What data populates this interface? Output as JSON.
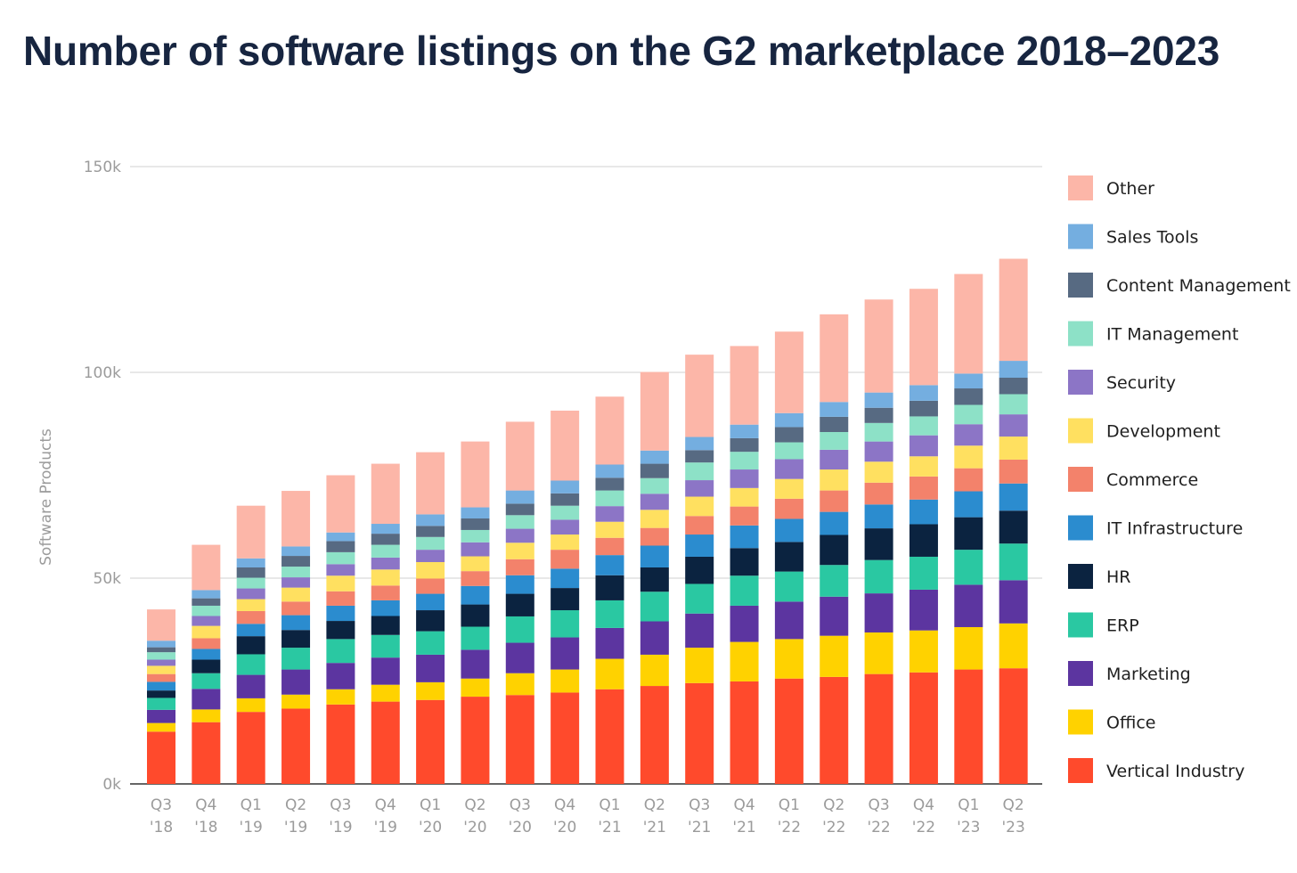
{
  "title": "Number of software listings on the G2 marketplace 2018–2023",
  "chart_data": {
    "type": "bar",
    "stacked": true,
    "title": "Number of software listings on the G2 marketplace 2018–2023",
    "xlabel": "",
    "ylabel": "Software Products",
    "ylim": [
      0,
      150000
    ],
    "yticks": [
      0,
      50000,
      100000,
      150000
    ],
    "ytick_labels": [
      "0k",
      "50k",
      "100k",
      "150k"
    ],
    "grid": true,
    "legend_position": "right",
    "categories": [
      "Q3 '18",
      "Q4 '18",
      "Q1 '19",
      "Q2 '19",
      "Q3 '19",
      "Q4 '19",
      "Q1 '20",
      "Q2 '20",
      "Q3 '20",
      "Q4 '20",
      "Q1 '21",
      "Q2 '21",
      "Q3 '21",
      "Q4 '21",
      "Q1 '22",
      "Q2 '22",
      "Q3 '22",
      "Q4 '22",
      "Q1 '23",
      "Q2 '23"
    ],
    "category_lines": [
      [
        "Q3",
        "'18"
      ],
      [
        "Q4",
        "'18"
      ],
      [
        "Q1",
        "'19"
      ],
      [
        "Q2",
        "'19"
      ],
      [
        "Q3",
        "'19"
      ],
      [
        "Q4",
        "'19"
      ],
      [
        "Q1",
        "'20"
      ],
      [
        "Q2",
        "'20"
      ],
      [
        "Q3",
        "'20"
      ],
      [
        "Q4",
        "'20"
      ],
      [
        "Q1",
        "'21"
      ],
      [
        "Q2",
        "'21"
      ],
      [
        "Q3",
        "'21"
      ],
      [
        "Q4",
        "'21"
      ],
      [
        "Q1",
        "'22"
      ],
      [
        "Q2",
        "'22"
      ],
      [
        "Q3",
        "'22"
      ],
      [
        "Q4",
        "'22"
      ],
      [
        "Q1",
        "'23"
      ],
      [
        "Q2",
        "'23"
      ]
    ],
    "series": [
      {
        "name": "Vertical Industry",
        "color": "#ff4a2c",
        "values": [
          12700,
          15000,
          17500,
          18300,
          19300,
          20000,
          20400,
          21200,
          21600,
          22200,
          23000,
          23800,
          24500,
          24900,
          25600,
          26000,
          26700,
          27100,
          27800,
          28100
        ]
      },
      {
        "name": "Office",
        "color": "#ffd200",
        "values": [
          2100,
          3100,
          3300,
          3400,
          3700,
          4100,
          4300,
          4400,
          5300,
          5600,
          7400,
          7600,
          8600,
          9600,
          9600,
          10000,
          10100,
          10200,
          10300,
          10900
        ]
      },
      {
        "name": "Marketing",
        "color": "#5c35a0",
        "values": [
          3200,
          5000,
          5700,
          6100,
          6400,
          6600,
          6700,
          7000,
          7400,
          7800,
          7500,
          8100,
          8300,
          8800,
          9100,
          9500,
          9500,
          9900,
          10300,
          10500
        ]
      },
      {
        "name": "ERP",
        "color": "#2ac8a2",
        "values": [
          2900,
          3800,
          5000,
          5300,
          5800,
          5500,
          5700,
          5600,
          6400,
          6600,
          6700,
          7200,
          7200,
          7300,
          7300,
          7700,
          8100,
          8000,
          8500,
          8900
        ]
      },
      {
        "name": "HR",
        "color": "#0b2340",
        "values": [
          1800,
          3300,
          4400,
          4300,
          4400,
          4600,
          5100,
          5400,
          5500,
          5400,
          6100,
          5900,
          6600,
          6700,
          7200,
          7300,
          7700,
          7900,
          7900,
          8000
        ]
      },
      {
        "name": "IT Infrastructure",
        "color": "#2b8ccf",
        "values": [
          2100,
          2600,
          3000,
          3600,
          3700,
          3800,
          4000,
          4500,
          4500,
          4700,
          4900,
          5300,
          5400,
          5500,
          5600,
          5600,
          5800,
          6000,
          6300,
          6600
        ]
      },
      {
        "name": "Commerce",
        "color": "#f3826b",
        "values": [
          1900,
          2600,
          3100,
          3300,
          3500,
          3600,
          3700,
          3600,
          3900,
          4600,
          4200,
          4300,
          4500,
          4600,
          4900,
          5200,
          5300,
          5600,
          5600,
          5800
        ]
      },
      {
        "name": "Development",
        "color": "#ffe060",
        "values": [
          2000,
          3000,
          2900,
          3400,
          3800,
          3900,
          4000,
          3600,
          4000,
          3700,
          3900,
          4400,
          4700,
          4500,
          4800,
          5100,
          5100,
          4900,
          5500,
          5600
        ]
      },
      {
        "name": "Security",
        "color": "#8c75c6",
        "values": [
          1500,
          2400,
          2600,
          2500,
          2800,
          2900,
          3000,
          3400,
          3400,
          3600,
          3800,
          3900,
          4000,
          4500,
          4800,
          4800,
          4900,
          5100,
          5200,
          5400
        ]
      },
      {
        "name": "IT Management",
        "color": "#8de1c7",
        "values": [
          1800,
          2500,
          2600,
          2600,
          2900,
          3100,
          3100,
          3000,
          3300,
          3400,
          3800,
          3800,
          4300,
          4300,
          4100,
          4300,
          4500,
          4600,
          4700,
          4900
        ]
      },
      {
        "name": "Content Management",
        "color": "#576a82",
        "values": [
          1200,
          1800,
          2500,
          2600,
          2700,
          2700,
          2700,
          2800,
          2800,
          3000,
          3100,
          3500,
          3000,
          3300,
          3700,
          3700,
          3700,
          3800,
          4000,
          4000
        ]
      },
      {
        "name": "Sales Tools",
        "color": "#74aee0",
        "values": [
          1600,
          2000,
          2200,
          2300,
          2100,
          2400,
          2800,
          2700,
          3200,
          3100,
          3200,
          3200,
          3200,
          3300,
          3400,
          3600,
          3700,
          3800,
          3600,
          4100
        ]
      },
      {
        "name": "Other",
        "color": "#fcb6a8",
        "values": [
          7600,
          11000,
          12800,
          13500,
          13900,
          14600,
          15100,
          16000,
          16700,
          17000,
          16500,
          19100,
          20000,
          19100,
          19800,
          21300,
          22600,
          23400,
          24200,
          24800
        ]
      }
    ]
  }
}
